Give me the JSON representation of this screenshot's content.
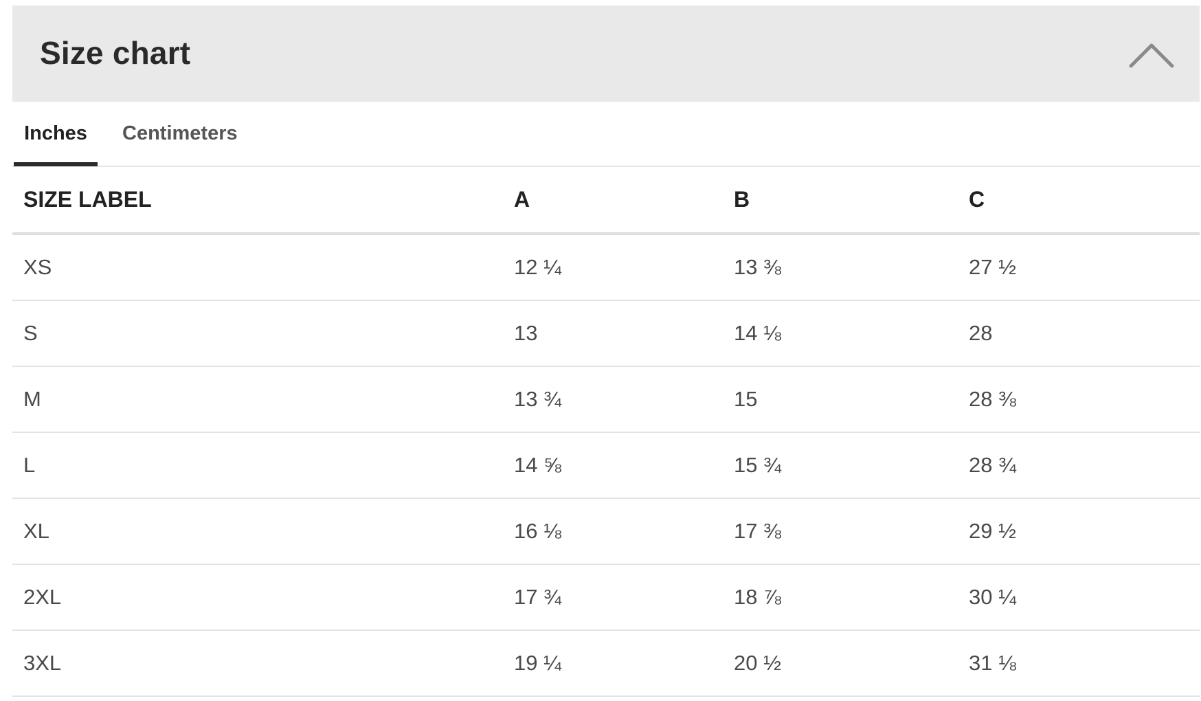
{
  "header": {
    "title": "Size chart",
    "toggle_icon": "chevron-up-icon"
  },
  "tabs": [
    {
      "label": "Inches",
      "active": true
    },
    {
      "label": "Centimeters",
      "active": false
    }
  ],
  "table": {
    "columns": [
      "SIZE LABEL",
      "A",
      "B",
      "C"
    ],
    "rows": [
      [
        "XS",
        "12 ¼",
        "13 ⅜",
        "27 ½"
      ],
      [
        "S",
        "13",
        "14 ⅛",
        "28"
      ],
      [
        "M",
        "13 ¾",
        "15",
        "28 ⅜"
      ],
      [
        "L",
        "14 ⅝",
        "15 ¾",
        "28 ¾"
      ],
      [
        "XL",
        "16 ⅛",
        "17 ⅜",
        "29 ½"
      ],
      [
        "2XL",
        "17 ¾",
        "18 ⅞",
        "30 ¼"
      ],
      [
        "3XL",
        "19 ¼",
        "20 ½",
        "31 ⅛"
      ]
    ]
  },
  "colors": {
    "header_bg": "#e9e9e9",
    "active_tab_underline": "#2b2b2b",
    "divider": "#e3e3e3"
  }
}
